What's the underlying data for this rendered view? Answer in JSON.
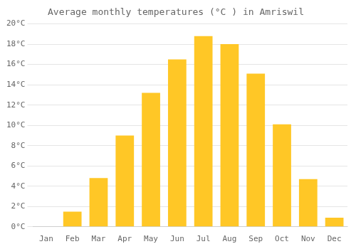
{
  "chart_data": {
    "type": "bar",
    "title": "Average monthly temperatures (°C ) in Amriswil",
    "categories": [
      "Jan",
      "Feb",
      "Mar",
      "Apr",
      "May",
      "Jun",
      "Jul",
      "Aug",
      "Sep",
      "Oct",
      "Nov",
      "Dec"
    ],
    "values": [
      0,
      1.5,
      4.8,
      9.0,
      13.2,
      16.5,
      18.8,
      18.0,
      15.1,
      10.1,
      4.7,
      0.9
    ],
    "color": "#FFC726",
    "ylim": [
      0,
      20
    ],
    "yticks": [
      {
        "value": 0,
        "label": "0°C"
      },
      {
        "value": 2,
        "label": "2°C"
      },
      {
        "value": 4,
        "label": "4°C"
      },
      {
        "value": 6,
        "label": "6°C"
      },
      {
        "value": 8,
        "label": "8°C"
      },
      {
        "value": 10,
        "label": "10°C"
      },
      {
        "value": 12,
        "label": "12°C"
      },
      {
        "value": 14,
        "label": "14°C"
      },
      {
        "value": 16,
        "label": "16°C"
      },
      {
        "value": 18,
        "label": "18°C"
      },
      {
        "value": 20,
        "label": "20°C"
      }
    ],
    "grid": true
  }
}
